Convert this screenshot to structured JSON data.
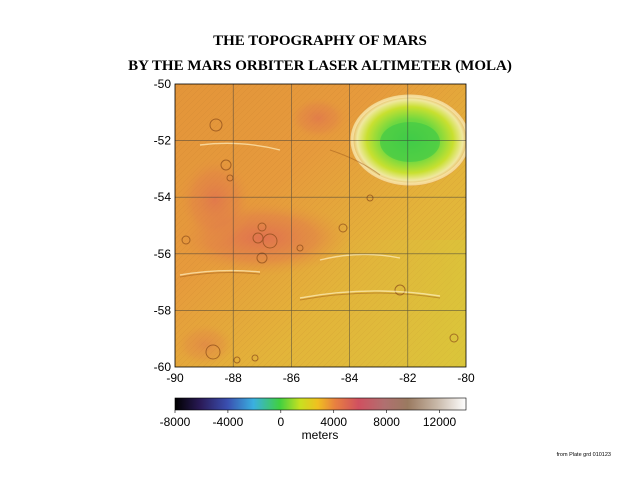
{
  "title_line1": "THE TOPOGRAPHY OF MARS",
  "title_line2": "BY THE MARS ORBITER LASER ALTIMETER (MOLA)",
  "map": {
    "lon_range": [
      -90,
      -80
    ],
    "lat_range": [
      -60,
      -50
    ],
    "x_ticks": [
      "-90",
      "-88",
      "-86",
      "-84",
      "-82",
      "-80"
    ],
    "y_ticks": [
      "-50",
      "-52",
      "-54",
      "-56",
      "-58",
      "-60"
    ],
    "grid": true
  },
  "colorbar": {
    "ticks": [
      "-8000",
      "-4000",
      "0",
      "4000",
      "8000",
      "12000"
    ],
    "unit_label": "meters",
    "range": [
      -8000,
      14000
    ],
    "colors": [
      "#000000",
      "#2b1b5a",
      "#3a4fb0",
      "#3ab0e0",
      "#40d040",
      "#c8e020",
      "#f0c020",
      "#e88040",
      "#d05050",
      "#b07070",
      "#9a7a60",
      "#c8b8a8",
      "#ffffff"
    ]
  },
  "credit": "from Plate grd 010123"
}
